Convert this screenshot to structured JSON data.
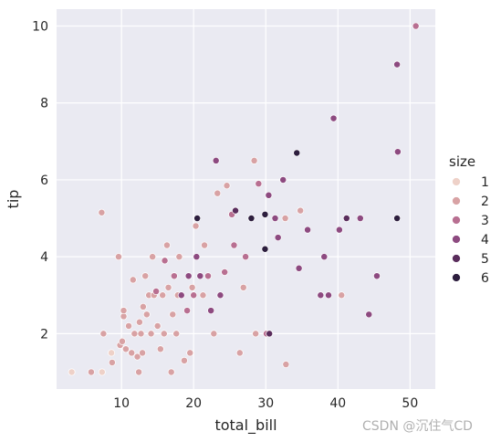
{
  "watermark": "CSDN @沉住气CD",
  "chart_data": {
    "type": "scatter",
    "xlabel": "total_bill",
    "ylabel": "tip",
    "xlim": [
      1,
      53.5
    ],
    "ylim": [
      0.56,
      10.44
    ],
    "xticks": [
      "10",
      "20",
      "30",
      "40",
      "50"
    ],
    "xtick_values": [
      10,
      20,
      30,
      40,
      50
    ],
    "yticks": [
      "2",
      "4",
      "6",
      "8",
      "10"
    ],
    "ytick_values": [
      2,
      4,
      6,
      8,
      10
    ],
    "grid": true,
    "background": "#eaeaf2",
    "legend": {
      "title": "size",
      "placement": "right",
      "entries": [
        {
          "label": "1",
          "color": "#eed1c8"
        },
        {
          "label": "2",
          "color": "#d8a2a4"
        },
        {
          "label": "3",
          "color": "#b86f91"
        },
        {
          "label": "4",
          "color": "#8d4a80"
        },
        {
          "label": "5",
          "color": "#5a2d5c"
        },
        {
          "label": "6",
          "color": "#2d1e3e"
        }
      ]
    },
    "points": [
      [
        3.1,
        1.0,
        1
      ],
      [
        5.8,
        1.0,
        2
      ],
      [
        7.3,
        1.0,
        1
      ],
      [
        7.25,
        5.15,
        2
      ],
      [
        7.5,
        2.0,
        2
      ],
      [
        8.6,
        1.5,
        1
      ],
      [
        8.7,
        1.25,
        2
      ],
      [
        9.6,
        4.0,
        2
      ],
      [
        9.8,
        1.7,
        2
      ],
      [
        10.1,
        1.8,
        2
      ],
      [
        10.3,
        2.45,
        2
      ],
      [
        10.6,
        1.6,
        2
      ],
      [
        10.3,
        2.6,
        2
      ],
      [
        11.0,
        2.2,
        2
      ],
      [
        11.4,
        1.5,
        2
      ],
      [
        11.6,
        3.4,
        2
      ],
      [
        11.8,
        2.0,
        2
      ],
      [
        12.2,
        1.4,
        2
      ],
      [
        12.5,
        2.3,
        2
      ],
      [
        12.4,
        1.0,
        2
      ],
      [
        12.7,
        2.0,
        2
      ],
      [
        12.9,
        1.5,
        2
      ],
      [
        13.0,
        2.7,
        2
      ],
      [
        13.3,
        3.5,
        2
      ],
      [
        13.8,
        3.0,
        2
      ],
      [
        13.5,
        2.5,
        2
      ],
      [
        14.1,
        2.0,
        2
      ],
      [
        14.3,
        4.0,
        2
      ],
      [
        14.5,
        3.0,
        2
      ],
      [
        14.8,
        3.1,
        3
      ],
      [
        15.0,
        2.2,
        2
      ],
      [
        15.4,
        1.6,
        2
      ],
      [
        15.7,
        3.0,
        2
      ],
      [
        15.9,
        2.0,
        2
      ],
      [
        16.0,
        3.9,
        3
      ],
      [
        16.3,
        4.3,
        2
      ],
      [
        16.5,
        3.2,
        2
      ],
      [
        16.9,
        1.0,
        2
      ],
      [
        17.1,
        2.5,
        2
      ],
      [
        17.3,
        3.5,
        3
      ],
      [
        17.6,
        2.0,
        2
      ],
      [
        17.8,
        3.0,
        2
      ],
      [
        18.0,
        4.0,
        2
      ],
      [
        18.3,
        3.0,
        4
      ],
      [
        18.7,
        1.3,
        2
      ],
      [
        19.1,
        2.6,
        3
      ],
      [
        19.3,
        3.5,
        4
      ],
      [
        19.5,
        1.5,
        2
      ],
      [
        19.8,
        3.2,
        2
      ],
      [
        20.0,
        3.0,
        3
      ],
      [
        20.3,
        4.8,
        2
      ],
      [
        20.4,
        4.0,
        4
      ],
      [
        20.5,
        5.0,
        6
      ],
      [
        20.9,
        3.5,
        4
      ],
      [
        21.3,
        3.0,
        2
      ],
      [
        21.5,
        4.3,
        2
      ],
      [
        22.0,
        3.5,
        3
      ],
      [
        22.4,
        2.6,
        4
      ],
      [
        22.8,
        2.0,
        2
      ],
      [
        23.1,
        6.5,
        4
      ],
      [
        23.3,
        5.65,
        2
      ],
      [
        23.7,
        3.0,
        4
      ],
      [
        24.3,
        3.6,
        3
      ],
      [
        24.6,
        5.85,
        2
      ],
      [
        25.3,
        5.1,
        3
      ],
      [
        25.6,
        4.3,
        3
      ],
      [
        25.8,
        5.2,
        5
      ],
      [
        26.4,
        1.5,
        2
      ],
      [
        26.9,
        3.2,
        2
      ],
      [
        27.2,
        4.0,
        3
      ],
      [
        28.0,
        5.0,
        6
      ],
      [
        28.4,
        6.5,
        2
      ],
      [
        28.6,
        2.0,
        2
      ],
      [
        29.0,
        5.9,
        3
      ],
      [
        29.9,
        5.1,
        6
      ],
      [
        29.9,
        4.2,
        6
      ],
      [
        30.1,
        2.0,
        3
      ],
      [
        30.4,
        5.6,
        4
      ],
      [
        30.5,
        2.0,
        5
      ],
      [
        31.3,
        5.0,
        4
      ],
      [
        31.7,
        4.5,
        4
      ],
      [
        32.4,
        6.0,
        4
      ],
      [
        32.7,
        5.0,
        2
      ],
      [
        32.8,
        1.2,
        2
      ],
      [
        34.3,
        6.7,
        6
      ],
      [
        34.6,
        3.7,
        4
      ],
      [
        34.8,
        5.2,
        2
      ],
      [
        35.8,
        4.7,
        4
      ],
      [
        37.6,
        3.0,
        4
      ],
      [
        38.1,
        4.0,
        4
      ],
      [
        38.7,
        3.0,
        4
      ],
      [
        39.4,
        7.6,
        4
      ],
      [
        40.2,
        4.7,
        4
      ],
      [
        40.5,
        3.0,
        2
      ],
      [
        41.2,
        5.0,
        5
      ],
      [
        43.1,
        5.0,
        4
      ],
      [
        44.3,
        2.5,
        4
      ],
      [
        45.4,
        3.5,
        4
      ],
      [
        48.2,
        9.0,
        4
      ],
      [
        48.3,
        6.73,
        4
      ],
      [
        48.2,
        5.0,
        6
      ],
      [
        50.8,
        10.0,
        3
      ]
    ]
  }
}
